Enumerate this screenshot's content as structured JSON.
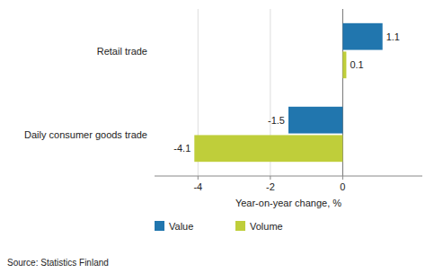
{
  "chart_data": {
    "type": "bar",
    "orientation": "horizontal",
    "categories": [
      "Daily consumer goods trade",
      "Retail trade"
    ],
    "series": [
      {
        "name": "Value",
        "color": "#2176AE",
        "values": [
          -1.5,
          1.1
        ]
      },
      {
        "name": "Volume",
        "color": "#BFCE3A",
        "values": [
          -4.1,
          0.1
        ]
      }
    ],
    "xlim": [
      -5.2,
      2.2
    ],
    "xticks": [
      -4,
      -2,
      0
    ],
    "x_label": "Year-on-year change, %",
    "annotations": [
      "Source: Statistics Finland"
    ],
    "grid": true,
    "legend": "bottom",
    "data_labels": true
  }
}
